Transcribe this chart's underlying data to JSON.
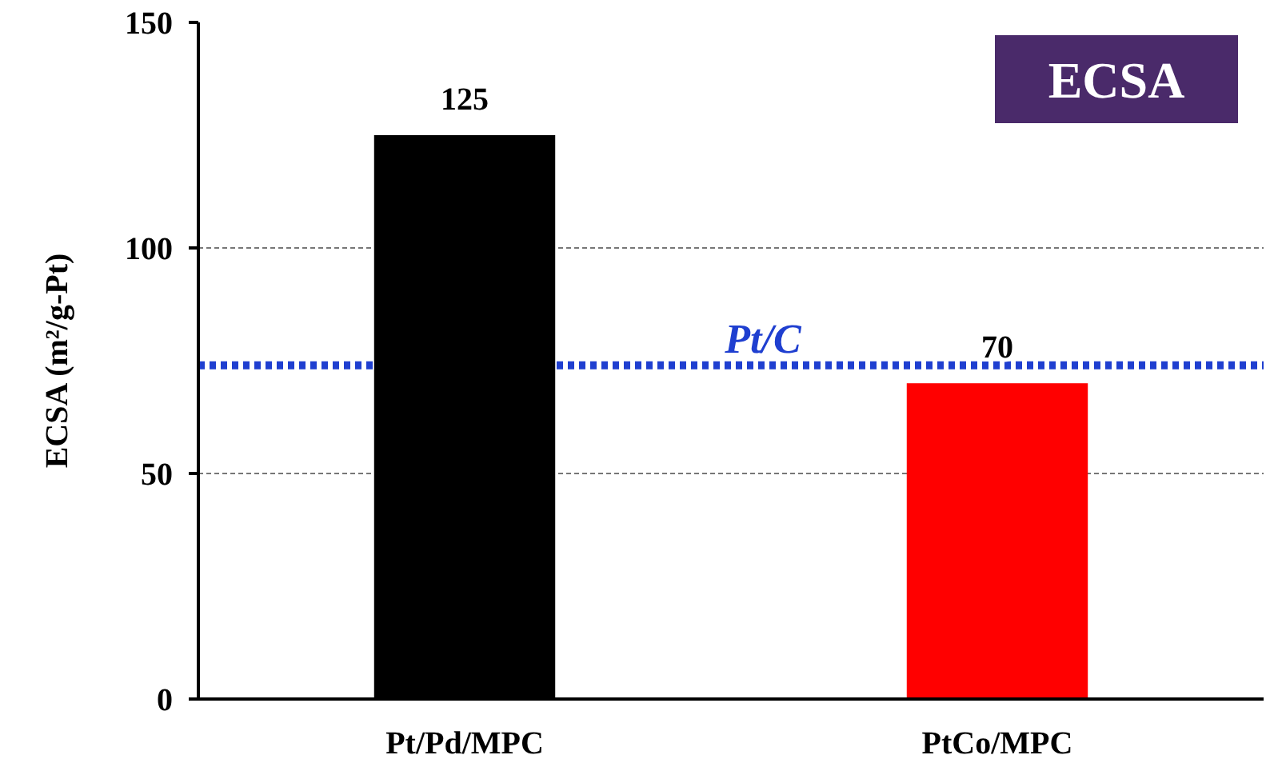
{
  "chart_data": {
    "type": "bar",
    "title": "ECSA",
    "ylabel": "ECSA (m²/g-Pt)",
    "categories": [
      "Pt/Pd/MPC",
      "PtCo/MPC"
    ],
    "values": [
      125,
      70
    ],
    "colors": [
      "#000000",
      "#ff0000"
    ],
    "ylim": [
      0,
      150
    ],
    "yticks": [
      0,
      50,
      100,
      150
    ],
    "grid": "y",
    "data_labels": true,
    "ref_lines": [
      {
        "axis": "y",
        "value": 74,
        "label": "Pt/C",
        "color": "#1f3fd0",
        "line_style": "dotted"
      }
    ]
  }
}
